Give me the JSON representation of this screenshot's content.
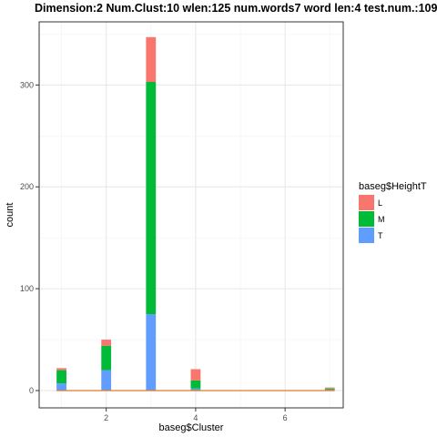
{
  "chart_data": {
    "type": "bar",
    "stacked": true,
    "title": "Dimension:2  Num.Clust:10  wlen:125  num.words7  word len:4  test.num.:109",
    "xlabel": "baseg$Cluster",
    "ylabel": "count",
    "xlim": [
      0.5,
      7.3
    ],
    "ylim": [
      -17,
      362
    ],
    "xticks": [
      2,
      4,
      6
    ],
    "yticks": [
      0,
      100,
      200,
      300
    ],
    "grid": true,
    "legend_title": "baseg$HeightT",
    "legend_position": "right",
    "categories": [
      1,
      2,
      3,
      4,
      7
    ],
    "series": [
      {
        "name": "T",
        "color": "#619CFF",
        "values": [
          7,
          20,
          75,
          2,
          1
        ]
      },
      {
        "name": "M",
        "color": "#00BA38",
        "values": [
          13,
          24,
          228,
          8,
          1
        ]
      },
      {
        "name": "L",
        "color": "#F8766D",
        "values": [
          2,
          6,
          44,
          11,
          1
        ]
      }
    ],
    "baseline_color": "#E07B28"
  }
}
